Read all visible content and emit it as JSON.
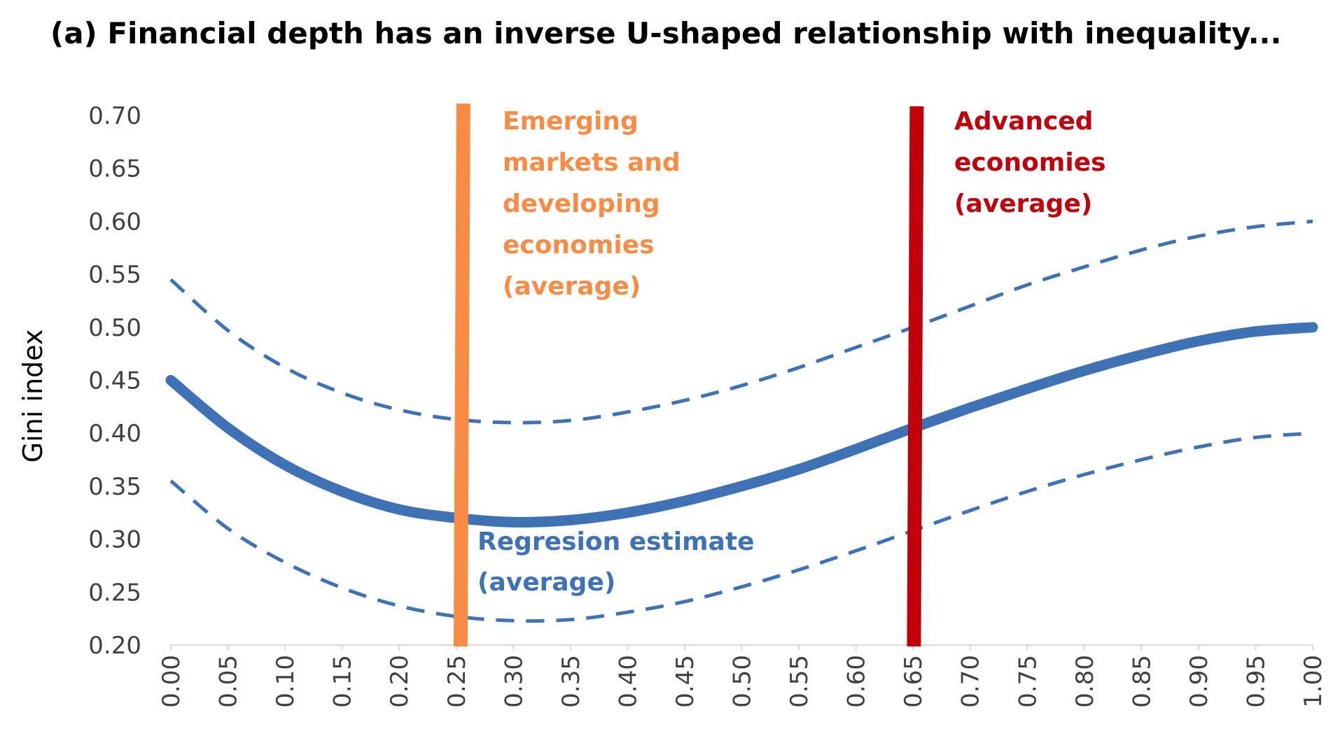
{
  "chart_data": {
    "type": "line",
    "title": "(a) Financial depth has an inverse U-shaped relationship with inequality...",
    "xlabel": "",
    "ylabel": "Gini index",
    "xlim": [
      0,
      1
    ],
    "ylim": [
      0.2,
      0.7
    ],
    "grid": false,
    "legend": "none",
    "x_ticks": [
      "0.00",
      "0.05",
      "0.10",
      "0.15",
      "0.20",
      "0.25",
      "0.30",
      "0.35",
      "0.40",
      "0.45",
      "0.50",
      "0.55",
      "0.60",
      "0.65",
      "0.70",
      "0.75",
      "0.80",
      "0.85",
      "0.90",
      "0.95",
      "1.00"
    ],
    "y_ticks": [
      "0.20",
      "0.25",
      "0.30",
      "0.35",
      "0.40",
      "0.45",
      "0.50",
      "0.55",
      "0.60",
      "0.65",
      "0.70"
    ],
    "series": [
      {
        "name": "Regresion estimate (average)",
        "style": "solid",
        "color": "#3E72B5",
        "x": [
          0.0,
          0.05,
          0.1,
          0.15,
          0.2,
          0.25,
          0.3,
          0.35,
          0.4,
          0.45,
          0.5,
          0.55,
          0.6,
          0.65,
          0.7,
          0.75,
          0.8,
          0.85,
          0.9,
          0.95,
          1.0
        ],
        "y": [
          0.45,
          0.405,
          0.37,
          0.345,
          0.328,
          0.32,
          0.316,
          0.318,
          0.325,
          0.336,
          0.35,
          0.366,
          0.385,
          0.405,
          0.424,
          0.442,
          0.459,
          0.474,
          0.487,
          0.496,
          0.5
        ]
      },
      {
        "style": "dashed",
        "color": "#3E72B5",
        "x": [
          0.0,
          0.05,
          0.1,
          0.15,
          0.2,
          0.25,
          0.3,
          0.35,
          0.4,
          0.45,
          0.5,
          0.55,
          0.6,
          0.65,
          0.7,
          0.75,
          0.8,
          0.85,
          0.9,
          0.95,
          1.0
        ],
        "y": [
          0.545,
          0.497,
          0.462,
          0.438,
          0.422,
          0.413,
          0.41,
          0.412,
          0.42,
          0.431,
          0.445,
          0.462,
          0.481,
          0.5,
          0.52,
          0.54,
          0.557,
          0.573,
          0.586,
          0.595,
          0.6
        ]
      },
      {
        "style": "dashed",
        "color": "#3E72B5",
        "x": [
          0.0,
          0.05,
          0.1,
          0.15,
          0.2,
          0.25,
          0.3,
          0.35,
          0.4,
          0.45,
          0.5,
          0.55,
          0.6,
          0.65,
          0.7,
          0.75,
          0.8,
          0.85,
          0.9,
          0.95,
          1.0
        ],
        "y": [
          0.355,
          0.31,
          0.278,
          0.254,
          0.237,
          0.227,
          0.223,
          0.224,
          0.231,
          0.241,
          0.255,
          0.271,
          0.289,
          0.308,
          0.327,
          0.345,
          0.361,
          0.375,
          0.387,
          0.396,
          0.4
        ]
      }
    ],
    "vlines": [
      {
        "x": 0.255,
        "color": "#F98C45",
        "label_lines": [
          "Emerging",
          "markets and",
          "developing",
          "economies",
          "(average)"
        ]
      },
      {
        "x": 0.652,
        "color": "#C0000B",
        "label_lines": [
          "Advanced",
          "economies",
          "(average)"
        ]
      }
    ],
    "series_label_lines": [
      "Regresion estimate",
      "(average)"
    ]
  }
}
